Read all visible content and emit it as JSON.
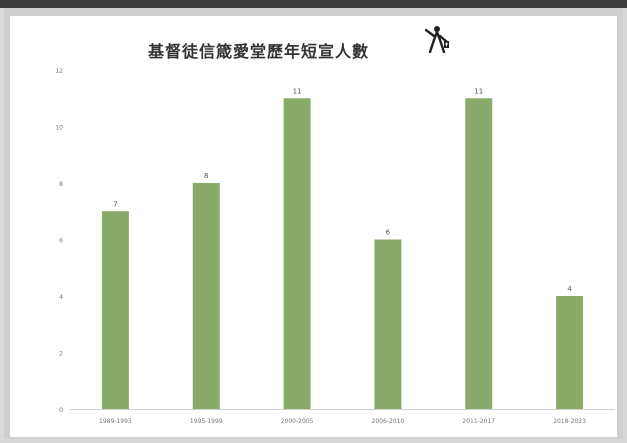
{
  "chart_data": {
    "type": "bar",
    "title": "基督徒信箴愛堂歷年短宣人數",
    "categories": [
      "1989-1993",
      "1995-1999",
      "2000-2005",
      "2006-2010",
      "2011-2017",
      "2018-2023"
    ],
    "values": [
      7,
      8,
      11,
      6,
      11,
      4
    ],
    "data_labels": [
      "7",
      "8",
      "11",
      "6",
      "11",
      "4"
    ],
    "y_ticks": [
      "0",
      "2",
      "4",
      "6",
      "8",
      "10",
      "12"
    ],
    "ylim": [
      0,
      12
    ],
    "grid": false,
    "legend": "none",
    "bar_color": "#8aaa6a"
  },
  "logo": {
    "icon": "missionary-figure-icon"
  }
}
